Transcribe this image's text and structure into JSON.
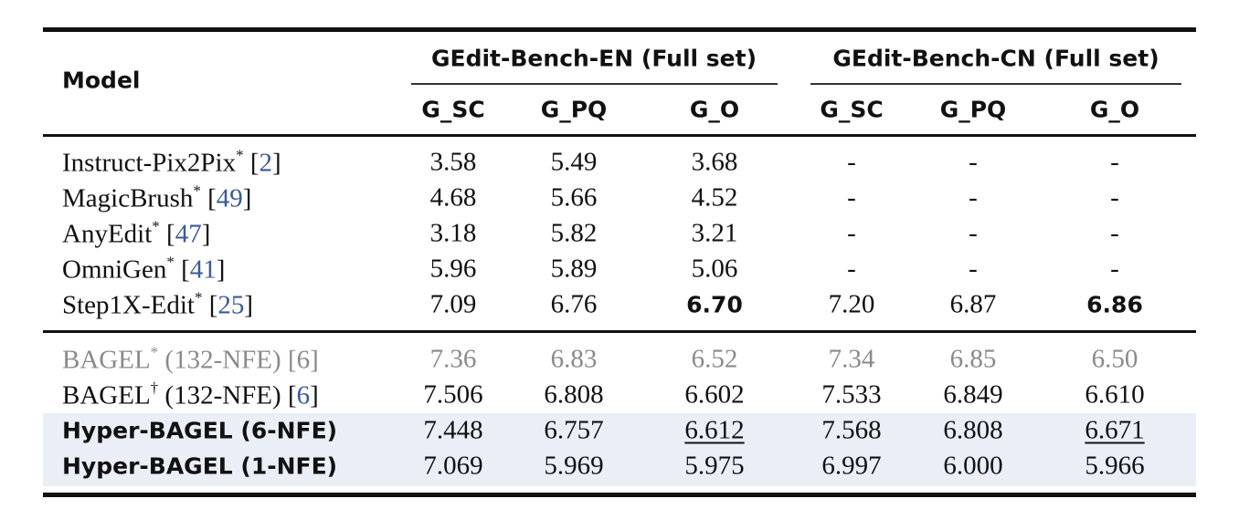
{
  "header": {
    "model": "Model",
    "groups": [
      "GEdit-Bench-EN (Full set)",
      "GEdit-Bench-CN (Full set)"
    ],
    "columns": [
      "G_SC",
      "G_PQ",
      "G_O",
      "G_SC",
      "G_PQ",
      "G_O"
    ]
  },
  "sections": [
    [
      {
        "model": "Instruct-Pix2Pix",
        "sup": "*",
        "ref": [
          "[",
          "2",
          "]"
        ],
        "values": [
          "3.58",
          "5.49",
          "3.68",
          "-",
          "-",
          "-"
        ]
      },
      {
        "model": "MagicBrush",
        "sup": "*",
        "ref": [
          "[",
          "49",
          "]"
        ],
        "values": [
          "4.68",
          "5.66",
          "4.52",
          "-",
          "-",
          "-"
        ]
      },
      {
        "model": "AnyEdit",
        "sup": "*",
        "ref": [
          "[",
          "47",
          "]"
        ],
        "values": [
          "3.18",
          "5.82",
          "3.21",
          "-",
          "-",
          "-"
        ]
      },
      {
        "model": "OmniGen",
        "sup": "*",
        "ref": [
          "[",
          "41",
          "]"
        ],
        "values": [
          "5.96",
          "5.89",
          "5.06",
          "-",
          "-",
          "-"
        ]
      },
      {
        "model": "Step1X-Edit",
        "sup": "*",
        "ref": [
          "[",
          "25",
          "]"
        ],
        "values": [
          "7.09",
          "6.76",
          "6.70",
          "7.20",
          "6.87",
          "6.86"
        ]
      }
    ],
    [
      {
        "model": "BAGEL",
        "sup": "*",
        "suffix": "(132-NFE)",
        "ref": [
          "[",
          "6",
          "]"
        ],
        "values": [
          "7.36",
          "6.83",
          "6.52",
          "7.34",
          "6.85",
          "6.50"
        ]
      },
      {
        "model": "BAGEL",
        "sup": "†",
        "suffix": "(132-NFE)",
        "ref": [
          "[",
          "6",
          "]"
        ],
        "values": [
          "7.506",
          "6.808",
          "6.602",
          "7.533",
          "6.849",
          "6.610"
        ]
      },
      {
        "model": "Hyper-BAGEL (6-NFE)",
        "values": [
          "7.448",
          "6.757",
          "6.612",
          "7.568",
          "6.808",
          "6.671"
        ]
      },
      {
        "model": "Hyper-BAGEL (1-NFE)",
        "values": [
          "7.069",
          "5.969",
          "5.975",
          "6.997",
          "6.000",
          "5.966"
        ]
      }
    ]
  ]
}
